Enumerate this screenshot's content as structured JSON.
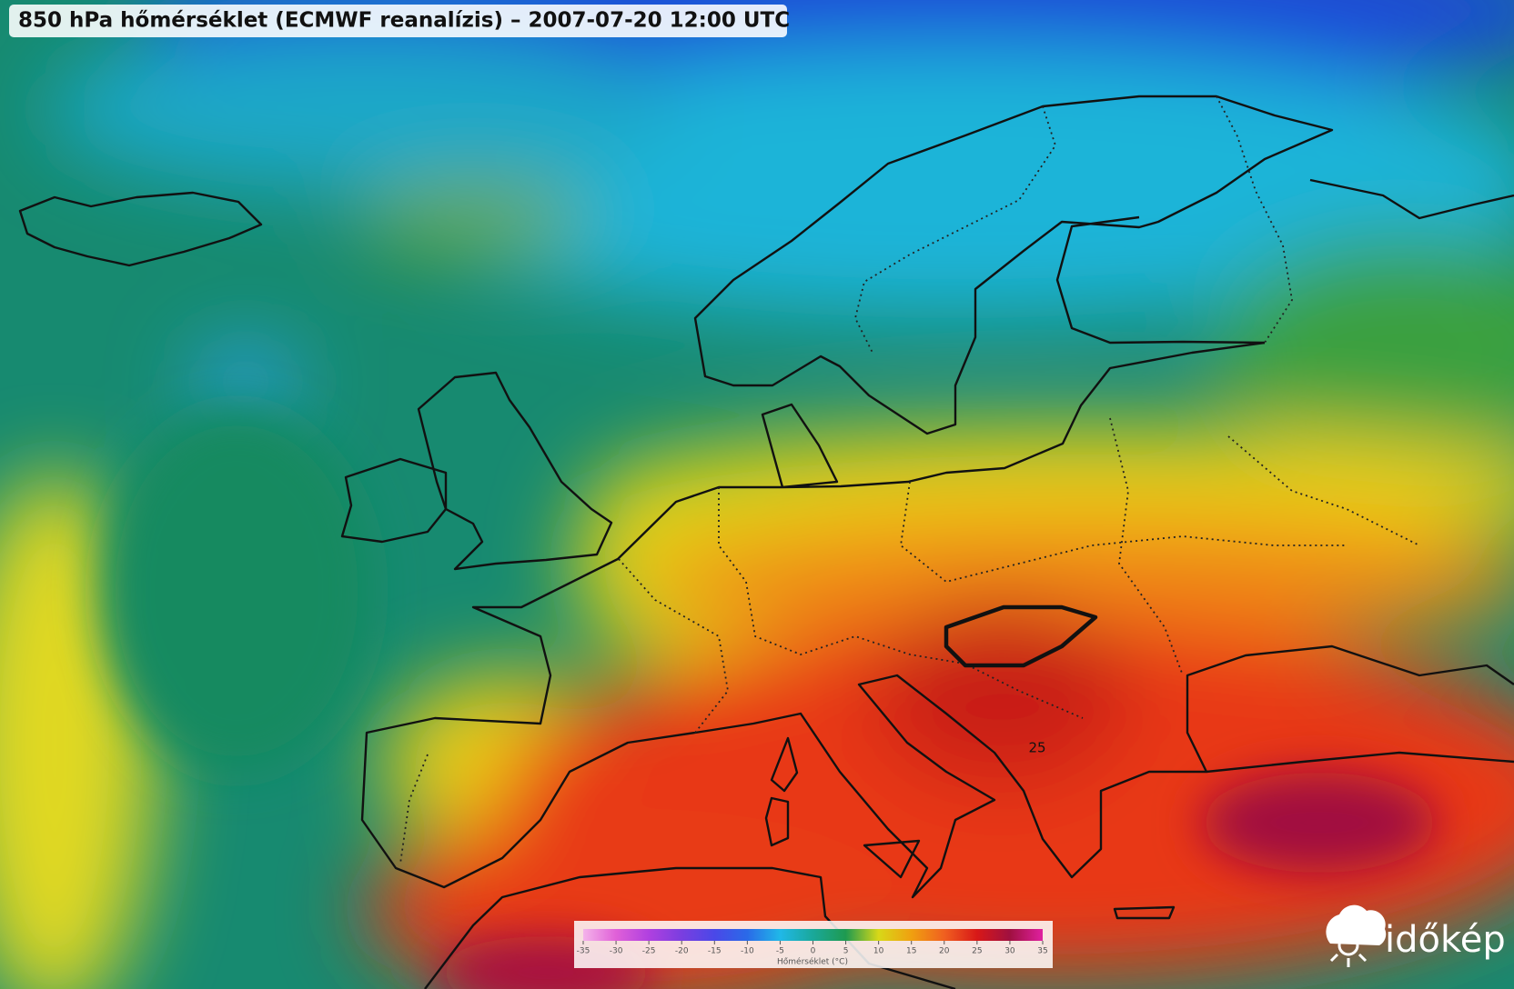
{
  "header": {
    "title": "850 hPa hőmérséklet (ECMWF reanalízis) – 2007-07-20 12:00 UTC"
  },
  "map": {
    "contour_labels": [
      "25"
    ]
  },
  "colorbar": {
    "label": "Hőmérséklet (°C)",
    "lim": [
      -35,
      35
    ],
    "ticks": [
      -35,
      -30,
      -25,
      -20,
      -15,
      -10,
      -5,
      0,
      5,
      10,
      15,
      20,
      25,
      30,
      35
    ],
    "colors": [
      "#f4b3ea",
      "#e060d8",
      "#b040e0",
      "#7a3ee0",
      "#4a48e8",
      "#2a6ae8",
      "#20b8e8",
      "#1aa89a",
      "#1e9a50",
      "#d8d818",
      "#f0a010",
      "#f06020",
      "#d81818",
      "#a01040",
      "#e020a0"
    ]
  },
  "logo": {
    "text": "időkép"
  }
}
